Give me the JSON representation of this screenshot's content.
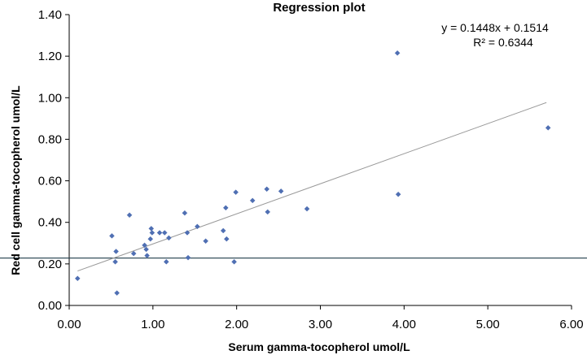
{
  "chart_data": {
    "type": "scatter",
    "title": "Regression plot",
    "xlabel": "Serum gamma-tocopherol umol/L",
    "ylabel": "Red cell gamma-tocopherol umol/L",
    "xlim": [
      0,
      6
    ],
    "ylim": [
      0,
      1.4
    ],
    "x_ticks": [
      "0.00",
      "1.00",
      "2.00",
      "3.00",
      "4.00",
      "5.00",
      "6.00"
    ],
    "y_ticks": [
      "0.00",
      "0.20",
      "0.40",
      "0.60",
      "0.80",
      "1.00",
      "1.20",
      "1.40"
    ],
    "grid": false,
    "marker_color": "#4f6fb3",
    "trendline_color": "#999999",
    "reference_line_color": "#1f3b4a",
    "reference_line_y": 0.228,
    "annotations": {
      "equation": "y = 0.1448x + 0.1514",
      "r_squared": "R² = 0.6344"
    },
    "trendline": {
      "slope": 0.1448,
      "intercept": 0.1514,
      "x_range": [
        0.1,
        5.7
      ]
    },
    "points": [
      {
        "x": 0.1,
        "y": 0.13
      },
      {
        "x": 0.51,
        "y": 0.335
      },
      {
        "x": 0.55,
        "y": 0.21
      },
      {
        "x": 0.56,
        "y": 0.26
      },
      {
        "x": 0.57,
        "y": 0.06
      },
      {
        "x": 0.72,
        "y": 0.435
      },
      {
        "x": 0.77,
        "y": 0.25
      },
      {
        "x": 0.9,
        "y": 0.29
      },
      {
        "x": 0.92,
        "y": 0.27
      },
      {
        "x": 0.93,
        "y": 0.24
      },
      {
        "x": 0.97,
        "y": 0.32
      },
      {
        "x": 0.98,
        "y": 0.37
      },
      {
        "x": 0.99,
        "y": 0.35
      },
      {
        "x": 1.08,
        "y": 0.35
      },
      {
        "x": 1.14,
        "y": 0.35
      },
      {
        "x": 1.16,
        "y": 0.21
      },
      {
        "x": 1.19,
        "y": 0.325
      },
      {
        "x": 1.38,
        "y": 0.445
      },
      {
        "x": 1.41,
        "y": 0.35
      },
      {
        "x": 1.42,
        "y": 0.23
      },
      {
        "x": 1.53,
        "y": 0.38
      },
      {
        "x": 1.63,
        "y": 0.31
      },
      {
        "x": 1.84,
        "y": 0.36
      },
      {
        "x": 1.87,
        "y": 0.47
      },
      {
        "x": 1.88,
        "y": 0.32
      },
      {
        "x": 1.97,
        "y": 0.21
      },
      {
        "x": 1.99,
        "y": 0.545
      },
      {
        "x": 2.19,
        "y": 0.505
      },
      {
        "x": 2.36,
        "y": 0.56
      },
      {
        "x": 2.37,
        "y": 0.45
      },
      {
        "x": 2.53,
        "y": 0.55
      },
      {
        "x": 2.84,
        "y": 0.465
      },
      {
        "x": 3.92,
        "y": 1.215
      },
      {
        "x": 3.93,
        "y": 0.535
      },
      {
        "x": 5.72,
        "y": 0.855
      }
    ]
  }
}
